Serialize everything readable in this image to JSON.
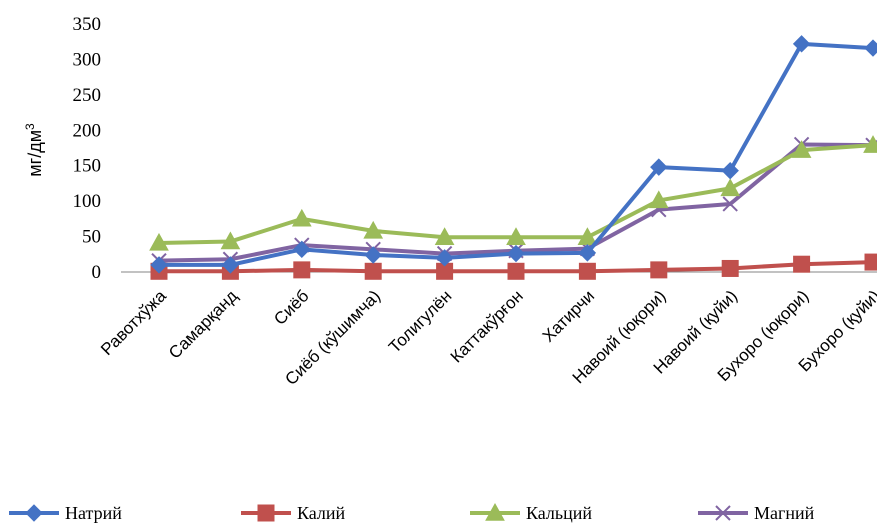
{
  "chart_data": {
    "type": "line",
    "title": "",
    "xlabel": "",
    "ylabel": "мг/дм",
    "ylabel_superscript": "3",
    "ylim": [
      0,
      350
    ],
    "yticks": [
      "0",
      "50",
      "100",
      "150",
      "200",
      "250",
      "300",
      "350"
    ],
    "grid": false,
    "legend_position": "bottom",
    "categories": [
      "Равотхўжа",
      "Самарқанд",
      "Сиёб",
      "Сиёб (кўшимча)",
      "Толигулён",
      "Каттакўрғон",
      "Хатирчи",
      "Навоий (юқори)",
      "Навоий (қуйи)",
      "Бухоро (юқори)",
      "Бухоро (қуйи)"
    ],
    "series": [
      {
        "name": "Натрий",
        "color": "#4472C4",
        "marker": "diamond",
        "values": [
          10,
          10,
          32,
          24,
          20,
          26,
          27,
          148,
          143,
          322,
          316
        ]
      },
      {
        "name": "Калий",
        "color": "#C0504D",
        "marker": "square",
        "values": [
          1,
          1,
          3,
          1,
          1,
          1,
          1,
          3,
          5,
          11,
          14
        ]
      },
      {
        "name": "Кальций",
        "color": "#9BBB59",
        "marker": "triangle",
        "values": [
          41,
          43,
          75,
          58,
          49,
          49,
          49,
          101,
          118,
          172,
          179
        ]
      },
      {
        "name": "Магний",
        "color": "#8064A2",
        "marker": "x",
        "values": [
          16,
          18,
          38,
          32,
          26,
          30,
          33,
          88,
          96,
          180,
          179
        ]
      }
    ]
  }
}
